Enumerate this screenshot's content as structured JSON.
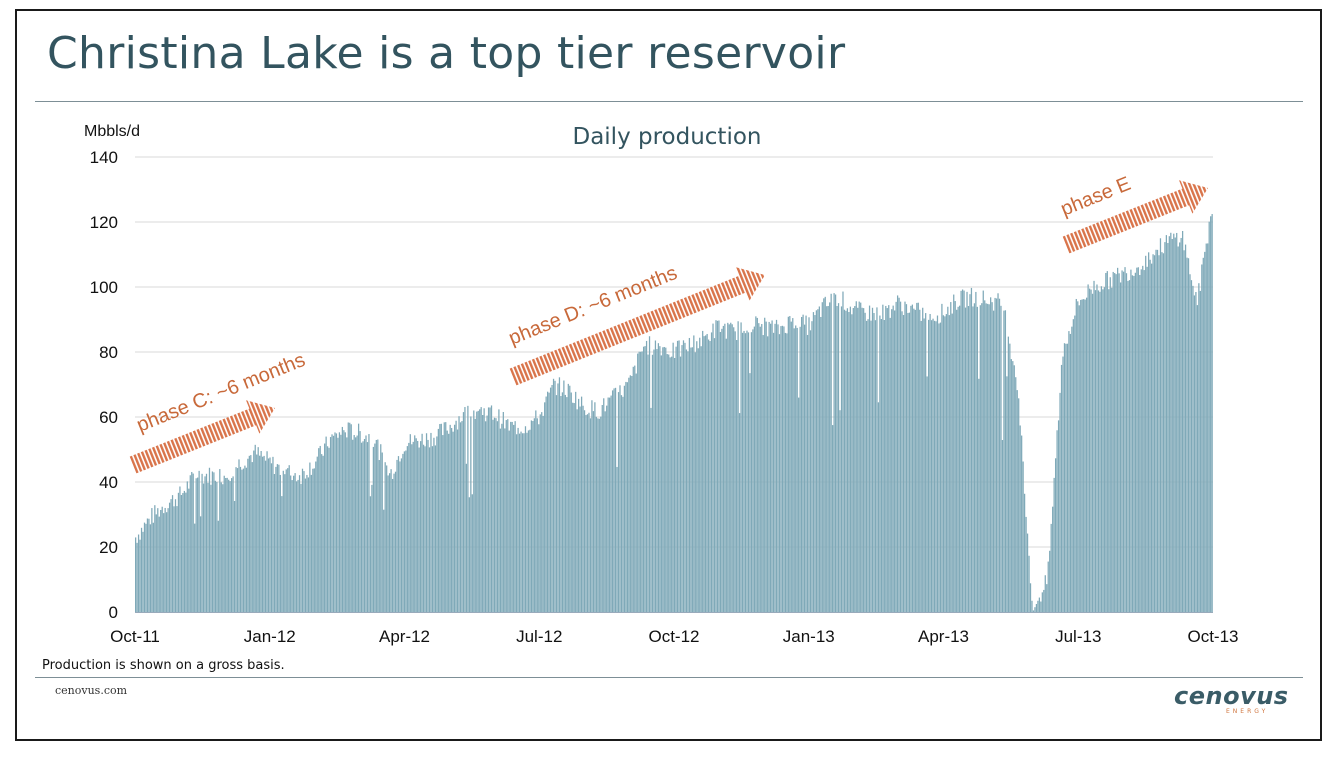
{
  "slide": {
    "title": "Christina Lake is a top tier reservoir",
    "footnote": "Production is shown on a gross basis.",
    "footer_url": "cenovus.com",
    "logo_text": "cenovus",
    "logo_sub": "ENERGY"
  },
  "colors": {
    "bar": "#7fa9b8",
    "title": "#33545f",
    "annotation": "#c8693a",
    "gridline": "#d9d9d9"
  },
  "chart_data": {
    "type": "bar",
    "title": "Daily production",
    "ylabel": "Mbbls/d",
    "xlabel": "",
    "ylim": [
      0,
      140
    ],
    "yticks": [
      0,
      20,
      40,
      60,
      80,
      100,
      120,
      140
    ],
    "xticks": [
      "Oct-11",
      "Jan-12",
      "Apr-12",
      "Jul-12",
      "Oct-12",
      "Jan-13",
      "Apr-13",
      "Jul-13",
      "Oct-13"
    ],
    "grid": true,
    "x_resolution": "daily",
    "series": [
      {
        "monthly_values": [
          {
            "month": "Oct-11",
            "values": [
              23,
              29,
              33
            ]
          },
          {
            "month": "Nov-11",
            "values": [
              36,
              42,
              42
            ]
          },
          {
            "month": "Dec-11",
            "values": [
              42,
              46,
              49
            ]
          },
          {
            "month": "Jan-12",
            "values": [
              46,
              43,
              42
            ]
          },
          {
            "month": "Feb-12",
            "values": [
              46,
              53,
              56
            ]
          },
          {
            "month": "Mar-12",
            "values": [
              55,
              53,
              42
            ]
          },
          {
            "month": "Apr-12",
            "values": [
              52,
              53,
              54
            ]
          },
          {
            "month": "May-12",
            "values": [
              57,
              61,
              62
            ]
          },
          {
            "month": "Jun-12",
            "values": [
              61,
              57,
              57
            ]
          },
          {
            "month": "Jul-12",
            "values": [
              60,
              70,
              68
            ]
          },
          {
            "month": "Aug-12",
            "values": [
              63,
              62,
              66
            ]
          },
          {
            "month": "Sep-12",
            "values": [
              70,
              82,
              82
            ]
          },
          {
            "month": "Oct-12",
            "values": [
              80,
              82,
              84
            ]
          },
          {
            "month": "Nov-12",
            "values": [
              88,
              86,
              89
            ]
          },
          {
            "month": "Dec-12",
            "values": [
              88,
              87,
              90
            ]
          },
          {
            "month": "Jan-13",
            "values": [
              88,
              94,
              97
            ]
          },
          {
            "month": "Feb-13",
            "values": [
              93,
              92,
              92
            ]
          },
          {
            "month": "Mar-13",
            "values": [
              95,
              93,
              91
            ]
          },
          {
            "month": "Apr-13",
            "values": [
              92,
              96,
              97
            ]
          },
          {
            "month": "May-13",
            "values": [
              96,
              95,
              70
            ]
          },
          {
            "month": "Jun-13",
            "values": [
              0,
              10,
              80
            ]
          },
          {
            "month": "Jul-13",
            "values": [
              95,
              100,
              102
            ]
          },
          {
            "month": "Aug-13",
            "values": [
              104,
              106,
              110
            ]
          },
          {
            "month": "Sep-13",
            "values": [
              114,
              116,
              95
            ]
          },
          {
            "month": "Oct-13",
            "values": [
              125
            ]
          }
        ]
      }
    ],
    "annotations": [
      {
        "text": "phase C: ~6 months"
      },
      {
        "text": "phase D: ~6 months"
      },
      {
        "text": "phase E"
      }
    ]
  }
}
